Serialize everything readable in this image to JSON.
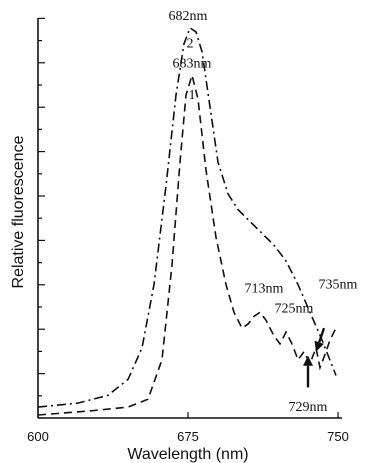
{
  "chart_data": {
    "type": "line",
    "xlabel": "Wavelength (nm)",
    "ylabel": "Relative fluorescence",
    "xlim": [
      600,
      750
    ],
    "ylim": [
      0,
      1.0
    ],
    "x_ticks": [
      600,
      675,
      750
    ],
    "series": [
      {
        "name": "2",
        "style": "dash-dot",
        "points": [
          [
            600,
            0.02
          ],
          [
            620,
            0.03
          ],
          [
            635,
            0.05
          ],
          [
            645,
            0.09
          ],
          [
            652,
            0.17
          ],
          [
            658,
            0.33
          ],
          [
            664,
            0.58
          ],
          [
            669,
            0.81
          ],
          [
            673,
            0.94
          ],
          [
            676,
            0.98
          ],
          [
            679,
            0.97
          ],
          [
            682,
            0.92
          ],
          [
            686,
            0.78
          ],
          [
            690,
            0.64
          ],
          [
            695,
            0.56
          ],
          [
            700,
            0.52
          ],
          [
            706,
            0.49
          ],
          [
            712,
            0.46
          ],
          [
            718,
            0.43
          ],
          [
            724,
            0.39
          ],
          [
            730,
            0.33
          ],
          [
            736,
            0.26
          ],
          [
            742,
            0.19
          ],
          [
            749,
            0.1
          ]
        ]
      },
      {
        "name": "1",
        "style": "dashed",
        "points": [
          [
            600,
            0.0
          ],
          [
            625,
            0.01
          ],
          [
            645,
            0.02
          ],
          [
            655,
            0.04
          ],
          [
            662,
            0.14
          ],
          [
            667,
            0.38
          ],
          [
            671,
            0.64
          ],
          [
            674,
            0.81
          ],
          [
            677,
            0.86
          ],
          [
            680,
            0.8
          ],
          [
            684,
            0.62
          ],
          [
            689,
            0.45
          ],
          [
            694,
            0.33
          ],
          [
            698,
            0.26
          ],
          [
            702,
            0.22
          ],
          [
            705,
            0.23
          ],
          [
            708,
            0.25
          ],
          [
            711,
            0.26
          ],
          [
            714,
            0.24
          ],
          [
            718,
            0.2
          ],
          [
            721,
            0.18
          ],
          [
            724,
            0.21
          ],
          [
            727,
            0.18
          ],
          [
            730,
            0.14
          ],
          [
            733,
            0.16
          ],
          [
            736,
            0.13
          ],
          [
            739,
            0.17
          ],
          [
            741,
            0.12
          ],
          [
            744,
            0.16
          ],
          [
            746,
            0.19
          ],
          [
            749,
            0.22
          ]
        ]
      }
    ],
    "annotations": [
      {
        "text": "682nm",
        "x": 675,
        "y": 1.0
      },
      {
        "text": "683nm",
        "x": 677,
        "y": 0.88
      },
      {
        "text": "713nm",
        "x": 713,
        "y": 0.31
      },
      {
        "text": "725nm",
        "x": 728,
        "y": 0.26
      },
      {
        "text": "735nm",
        "x": 750,
        "y": 0.32
      },
      {
        "text": "729nm",
        "x": 735,
        "y": 0.01
      }
    ],
    "series_labels": [
      {
        "text": "2",
        "x": 676,
        "y": 0.93
      },
      {
        "text": "1",
        "x": 677,
        "y": 0.8
      }
    ],
    "arrows": [
      {
        "from": [
          743,
          0.22
        ],
        "to": [
          739,
          0.16
        ]
      },
      {
        "from": [
          735,
          0.07
        ],
        "to": [
          735,
          0.15
        ]
      }
    ]
  }
}
